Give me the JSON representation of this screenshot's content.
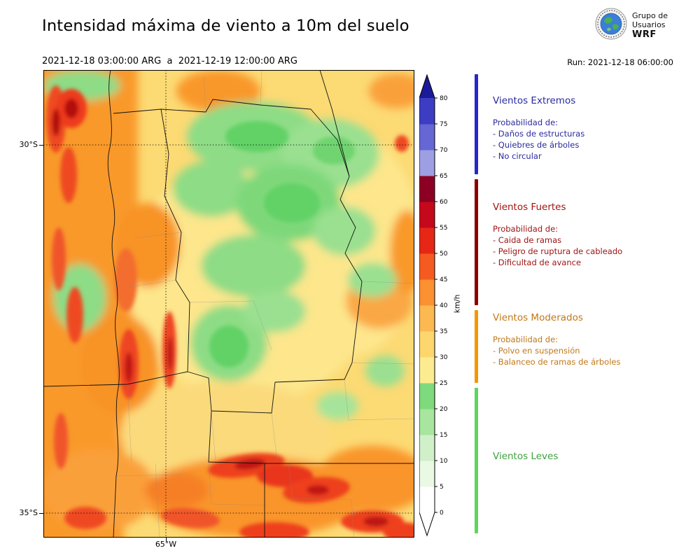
{
  "header": {
    "title": "Intensidad máxima de viento a 10m del suelo",
    "date_range": "2021-12-18 03:00:00 ARG  a  2021-12-19 12:00:00 ARG",
    "run_label": "Run: 2021-12-18 06:00:00",
    "logo": {
      "org_line1": "Grupo de",
      "org_line2": "Usuarios",
      "org_bold": "WRF"
    }
  },
  "map": {
    "y_tick_labels": [
      "30°S",
      "35°S"
    ],
    "x_tick_labels": [
      "65°W"
    ]
  },
  "colorbar": {
    "unit": "km/h",
    "ticks": [
      0,
      5,
      10,
      15,
      20,
      25,
      30,
      35,
      40,
      45,
      50,
      55,
      60,
      65,
      70,
      75,
      80
    ],
    "over_color": "#1b1b99",
    "under_color": "#ffffff",
    "segments": [
      {
        "from": 0,
        "to": 5,
        "color": "#ffffff"
      },
      {
        "from": 5,
        "to": 10,
        "color": "#e9f9e4"
      },
      {
        "from": 10,
        "to": 15,
        "color": "#cff0c8"
      },
      {
        "from": 15,
        "to": 20,
        "color": "#a8e59e"
      },
      {
        "from": 20,
        "to": 25,
        "color": "#7eda7c"
      },
      {
        "from": 25,
        "to": 30,
        "color": "#fdeb91"
      },
      {
        "from": 30,
        "to": 35,
        "color": "#fdd76e"
      },
      {
        "from": 35,
        "to": 40,
        "color": "#fdb951"
      },
      {
        "from": 40,
        "to": 45,
        "color": "#fb9131"
      },
      {
        "from": 45,
        "to": 50,
        "color": "#f55b20"
      },
      {
        "from": 50,
        "to": 55,
        "color": "#e62716"
      },
      {
        "from": 55,
        "to": 60,
        "color": "#c5081c"
      },
      {
        "from": 60,
        "to": 65,
        "color": "#8c0023"
      },
      {
        "from": 65,
        "to": 70,
        "color": "#9e9ee2"
      },
      {
        "from": 70,
        "to": 75,
        "color": "#6666d4"
      },
      {
        "from": 75,
        "to": 80,
        "color": "#3d3dc4"
      }
    ]
  },
  "legend": {
    "categories": [
      {
        "name": "Vientos Extremos",
        "bar_color": "#2626cc",
        "text_color": "#2a2aa0",
        "heading": "Probabilidad de:",
        "items": [
          "- Daños de estructuras",
          "- Quiebres de árboles",
          "- No circular"
        ]
      },
      {
        "name": "Vientos Fuertes",
        "bar_color": "#8c0000",
        "text_color": "#a01414",
        "heading": "Probabilidad de:",
        "items": [
          "- Caida de ramas",
          "- Peligro de ruptura de cableado",
          "- Dificultad de avance"
        ]
      },
      {
        "name": "Vientos Moderados",
        "bar_color": "#f59600",
        "text_color": "#c07818",
        "heading": "Probabilidad de:",
        "items": [
          "- Polvo en suspensión",
          "- Balanceo de ramas de árboles"
        ]
      },
      {
        "name": "Vientos Leves",
        "bar_color": "#5cd65c",
        "text_color": "#3fa03f",
        "heading": "",
        "items": []
      }
    ]
  }
}
